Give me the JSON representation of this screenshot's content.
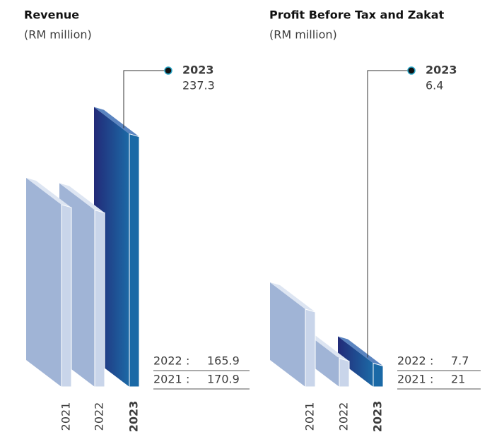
{
  "chart_data": [
    {
      "type": "bar3d",
      "title": "Revenue",
      "subtitle": "(RM million)",
      "categories": [
        "2021",
        "2022",
        "2023"
      ],
      "values": [
        170.9,
        165.9,
        237.3
      ],
      "label_separator": ":",
      "color": "#a0b4d6",
      "highlight_color": "#1a69a6"
    },
    {
      "type": "bar3d",
      "title": "Profit Before Tax and Zakat",
      "subtitle": "(RM million)",
      "categories": [
        "2021",
        "2022",
        "2023"
      ],
      "values": [
        21.0,
        7.7,
        6.4
      ],
      "label_separator": ":",
      "color": "#a0b4d6",
      "highlight_color": "#1a69a6"
    }
  ]
}
